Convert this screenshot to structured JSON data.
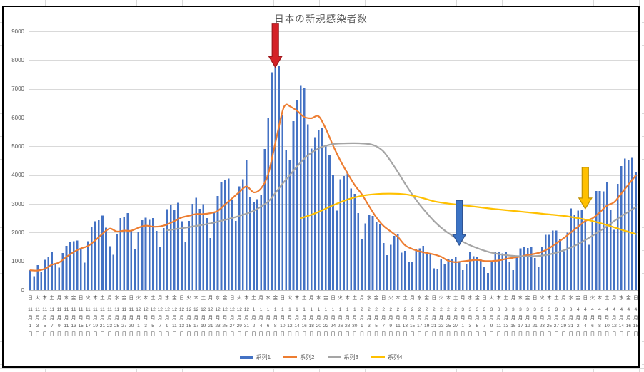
{
  "chart_data": {
    "type": "bar",
    "title": "日本の新規感染者数",
    "ylim": [
      0,
      9000
    ],
    "y_ticks": [
      0,
      1000,
      2000,
      3000,
      4000,
      5000,
      6000,
      7000,
      8000,
      9000
    ],
    "grid": true,
    "legend_position": "bottom",
    "x_range": "11月1日(日)〜4月18日(日) 每日169本, 目盛ラベルは2日おき",
    "x_tick_labels": [
      "日|11|1",
      "火|11|3",
      "木|11|5",
      "土|11|7",
      "月|11|9",
      "水|11|11",
      "金|11|13",
      "日|11|15",
      "火|11|17",
      "木|11|19",
      "土|11|21",
      "月|11|23",
      "水|11|25",
      "金|11|27",
      "日|11|29",
      "火|12|1",
      "木|12|3",
      "土|12|5",
      "月|12|7",
      "水|12|9",
      "金|12|11",
      "日|12|13",
      "火|12|15",
      "木|12|17",
      "土|12|19",
      "月|12|21",
      "水|12|23",
      "金|12|25",
      "日|12|27",
      "火|12|29",
      "木|12|31",
      "土|1|2",
      "月|1|4",
      "水|1|6",
      "金|1|8",
      "日|1|10",
      "火|1|12",
      "木|1|14",
      "土|1|16",
      "月|1|18",
      "水|1|20",
      "金|1|22",
      "日|1|24",
      "火|1|26",
      "木|1|28",
      "土|1|30",
      "月|2|1",
      "水|2|3",
      "金|2|5",
      "日|2|7",
      "火|2|9",
      "木|2|11",
      "土|2|13",
      "月|2|15",
      "水|2|17",
      "金|2|19",
      "日|2|21",
      "火|2|23",
      "木|2|25",
      "土|2|27",
      "月|3|1",
      "水|3|3",
      "金|3|5",
      "日|3|7",
      "火|3|9",
      "木|3|11",
      "土|3|13",
      "月|3|15",
      "水|3|17",
      "金|3|19",
      "日|3|21",
      "火|3|23",
      "木|3|25",
      "土|3|27",
      "月|3|29",
      "水|3|31",
      "金|4|2",
      "日|4|4",
      "火|4|6",
      "木|4|8",
      "土|4|10",
      "月|4|12",
      "水|4|14",
      "金|4|16",
      "日|4|18"
    ],
    "series": [
      {
        "name": "系列1",
        "type": "bar",
        "color": "#4472C4",
        "values": [
          690,
          480,
          867,
          620,
          1049,
          1141,
          1331,
          941,
          780,
          1284,
          1543,
          1661,
          1704,
          1729,
          1441,
          950,
          1699,
          2179,
          2388,
          2427,
          2586,
          2168,
          1520,
          1229,
          1930,
          2504,
          2531,
          2684,
          2066,
          1438,
          2030,
          2430,
          2518,
          2442,
          2508,
          2058,
          1509,
          2152,
          2811,
          2969,
          2790,
          3041,
          2387,
          1680,
          2410,
          2994,
          3211,
          2829,
          2982,
          2501,
          1806,
          2688,
          3271,
          3742,
          3832,
          3881,
          3127,
          2403,
          3610,
          3852,
          4520,
          3246,
          3044,
          3158,
          3325,
          4915,
          6004,
          7571,
          7882,
          7790,
          6097,
          4876,
          4538,
          5870,
          6609,
          7133,
          7014,
          5759,
          4925,
          5320,
          5549,
          5653,
          5045,
          4717,
          3989,
          2764,
          3853,
          3971,
          4133,
          3534,
          3344,
          2673,
          1791,
          2324,
          2631,
          2576,
          2372,
          2279,
          1631,
          1216,
          1570,
          1887,
          1933,
          1304,
          1362,
          965,
          966,
          1443,
          1448,
          1538,
          1301,
          1234,
          752,
          739,
          1087,
          923,
          1076,
          1083,
          1147,
          986,
          697,
          888,
          1316,
          1173,
          1148,
          1062,
          800,
          599,
          971,
          1321,
          1316,
          1271,
          1320,
          989,
          695,
          1133,
          1448,
          1501,
          1463,
          1490,
          1121,
          800,
          1504,
          1918,
          1917,
          2070,
          2071,
          1785,
          1348,
          1999,
          2843,
          2602,
          2770,
          2779,
          2467,
          1571,
          2444,
          3449,
          3448,
          3437,
          3744,
          2777,
          2098,
          3698,
          4309,
          4574,
          4532,
          4601,
          4093
        ]
      },
      {
        "name": "系列2",
        "type": "line",
        "color": "#ED7D31",
        "points": [
          [
            0,
            690
          ],
          [
            2,
            679
          ],
          [
            4,
            741
          ],
          [
            6,
            883
          ],
          [
            8,
            961
          ],
          [
            10,
            1153
          ],
          [
            12,
            1321
          ],
          [
            14,
            1449
          ],
          [
            16,
            1532
          ],
          [
            18,
            1727
          ],
          [
            20,
            1953
          ],
          [
            22,
            2138
          ],
          [
            24,
            2035
          ],
          [
            26,
            2067
          ],
          [
            28,
            2066
          ],
          [
            30,
            2169
          ],
          [
            32,
            2242
          ],
          [
            34,
            2205
          ],
          [
            36,
            2214
          ],
          [
            38,
            2285
          ],
          [
            40,
            2400
          ],
          [
            42,
            2523
          ],
          [
            44,
            2584
          ],
          [
            46,
            2645
          ],
          [
            48,
            2642
          ],
          [
            50,
            2676
          ],
          [
            52,
            2755
          ],
          [
            54,
            2975
          ],
          [
            56,
            3192
          ],
          [
            58,
            3409
          ],
          [
            60,
            3604
          ],
          [
            62,
            3400
          ],
          [
            64,
            3536
          ],
          [
            66,
            4030
          ],
          [
            68,
            5128
          ],
          [
            70,
            6227
          ],
          [
            71,
            6448
          ],
          [
            72,
            6394
          ],
          [
            74,
            6237
          ],
          [
            76,
            6020
          ],
          [
            78,
            5978
          ],
          [
            80,
            6044
          ],
          [
            82,
            5609
          ],
          [
            84,
            5028
          ],
          [
            86,
            4510
          ],
          [
            88,
            4067
          ],
          [
            90,
            3655
          ],
          [
            92,
            3328
          ],
          [
            94,
            2919
          ],
          [
            96,
            2530
          ],
          [
            98,
            2229
          ],
          [
            100,
            2039
          ],
          [
            102,
            1841
          ],
          [
            104,
            1558
          ],
          [
            106,
            1427
          ],
          [
            108,
            1346
          ],
          [
            110,
            1289
          ],
          [
            112,
            1240
          ],
          [
            114,
            1157
          ],
          [
            116,
            1016
          ],
          [
            118,
            972
          ],
          [
            120,
            999
          ],
          [
            122,
            1028
          ],
          [
            124,
            1051
          ],
          [
            126,
            1012
          ],
          [
            128,
            1010
          ],
          [
            130,
            1031
          ],
          [
            132,
            1085
          ],
          [
            134,
            1126
          ],
          [
            136,
            1167
          ],
          [
            138,
            1221
          ],
          [
            140,
            1264
          ],
          [
            142,
            1332
          ],
          [
            144,
            1459
          ],
          [
            146,
            1629
          ],
          [
            148,
            1802
          ],
          [
            150,
            2005
          ],
          [
            152,
            2203
          ],
          [
            154,
            2401
          ],
          [
            156,
            2497
          ],
          [
            158,
            2704
          ],
          [
            160,
            2937
          ],
          [
            162,
            3057
          ],
          [
            164,
            3359
          ],
          [
            166,
            3676
          ],
          [
            168,
            3986
          ]
        ]
      },
      {
        "name": "系列3",
        "type": "line",
        "color": "#A5A5A5",
        "points": [
          [
            38,
            2080
          ],
          [
            42,
            2150
          ],
          [
            46,
            2230
          ],
          [
            50,
            2320
          ],
          [
            54,
            2440
          ],
          [
            58,
            2580
          ],
          [
            62,
            2760
          ],
          [
            66,
            3080
          ],
          [
            68,
            3380
          ],
          [
            70,
            3700
          ],
          [
            72,
            4000
          ],
          [
            74,
            4300
          ],
          [
            76,
            4570
          ],
          [
            78,
            4780
          ],
          [
            80,
            4930
          ],
          [
            82,
            5020
          ],
          [
            84,
            5080
          ],
          [
            86,
            5100
          ],
          [
            90,
            5110
          ],
          [
            94,
            5080
          ],
          [
            96,
            5000
          ],
          [
            98,
            4820
          ],
          [
            100,
            4480
          ],
          [
            102,
            4100
          ],
          [
            104,
            3700
          ],
          [
            106,
            3320
          ],
          [
            108,
            2980
          ],
          [
            110,
            2680
          ],
          [
            112,
            2400
          ],
          [
            114,
            2170
          ],
          [
            116,
            1980
          ],
          [
            118,
            1820
          ],
          [
            120,
            1680
          ],
          [
            122,
            1560
          ],
          [
            124,
            1460
          ],
          [
            126,
            1370
          ],
          [
            128,
            1300
          ],
          [
            130,
            1250
          ],
          [
            132,
            1215
          ],
          [
            134,
            1190
          ],
          [
            136,
            1175
          ],
          [
            138,
            1170
          ],
          [
            140,
            1180
          ],
          [
            142,
            1200
          ],
          [
            144,
            1240
          ],
          [
            146,
            1300
          ],
          [
            148,
            1380
          ],
          [
            150,
            1480
          ],
          [
            152,
            1600
          ],
          [
            154,
            1740
          ],
          [
            156,
            1890
          ],
          [
            158,
            2050
          ],
          [
            160,
            2220
          ],
          [
            162,
            2400
          ],
          [
            164,
            2570
          ],
          [
            166,
            2730
          ],
          [
            168,
            2880
          ]
        ]
      },
      {
        "name": "系列4",
        "type": "line",
        "color": "#FFC000",
        "points": [
          [
            75,
            2500
          ],
          [
            78,
            2620
          ],
          [
            80,
            2720
          ],
          [
            84,
            2950
          ],
          [
            88,
            3150
          ],
          [
            92,
            3280
          ],
          [
            96,
            3340
          ],
          [
            100,
            3355
          ],
          [
            104,
            3330
          ],
          [
            108,
            3230
          ],
          [
            112,
            3090
          ],
          [
            116,
            3010
          ],
          [
            120,
            2950
          ],
          [
            124,
            2890
          ],
          [
            128,
            2830
          ],
          [
            132,
            2780
          ],
          [
            136,
            2730
          ],
          [
            140,
            2680
          ],
          [
            144,
            2630
          ],
          [
            148,
            2580
          ],
          [
            152,
            2500
          ],
          [
            156,
            2400
          ],
          [
            160,
            2260
          ],
          [
            164,
            2100
          ],
          [
            168,
            1950
          ]
        ]
      }
    ],
    "annotations": [
      {
        "name": "red-down-arrow",
        "day": 68,
        "top_value": 9280,
        "tip_value": 7750,
        "fill": "#D42127",
        "stroke": "#9E191E"
      },
      {
        "name": "blue-down-arrow",
        "day": 119,
        "top_value": 3120,
        "tip_value": 1560,
        "fill": "#3B73C4",
        "stroke": "#2F528F"
      },
      {
        "name": "gold-down-arrow",
        "day": 154,
        "top_value": 4270,
        "tip_value": 2830,
        "fill": "#FFC000",
        "stroke": "#BF9000"
      }
    ],
    "legend": [
      {
        "label": "系列1",
        "color": "#4472C4",
        "swatch": "bar"
      },
      {
        "label": "系列2",
        "color": "#ED7D31",
        "swatch": "line"
      },
      {
        "label": "系列3",
        "color": "#A5A5A5",
        "swatch": "line"
      },
      {
        "label": "系列4",
        "color": "#FFC000",
        "swatch": "line"
      }
    ],
    "colors": {
      "grid": "#D9D9D9",
      "axis_line": "#BFBFBF",
      "axis_text": "#595959",
      "title_text": "#595959",
      "chart_border": "#000000"
    }
  }
}
